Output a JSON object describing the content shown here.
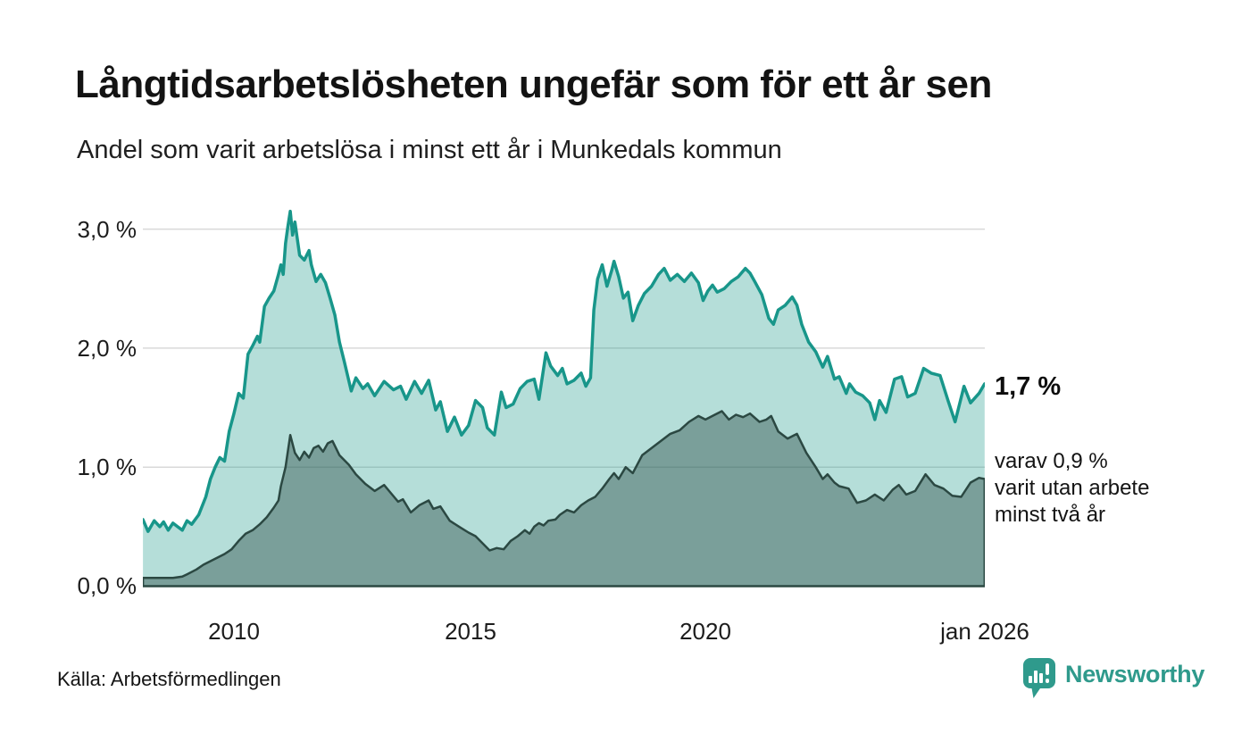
{
  "header": {
    "title": "Långtidsarbetslösheten ungefär som för ett år sen",
    "subtitle": "Andel som varit arbetslösa i minst ett år i Munkedals kommun"
  },
  "chart_data": {
    "type": "area",
    "title": "Långtidsarbetslösheten ungefär som för ett år sen",
    "subtitle": "Andel som varit arbetslösa i minst ett år i Munkedals kommun",
    "unit": "%",
    "grid": true,
    "x_range": [
      2008.06,
      2026.0
    ],
    "ylim": [
      0,
      3.25
    ],
    "y_gridlines": [
      0,
      1,
      2,
      3
    ],
    "y_ticks": [
      "3,0 %",
      "2,0 %",
      "1,0 %",
      "0,0 %"
    ],
    "x_ticks": [
      "2010",
      "2015",
      "2020",
      "jan 2026"
    ],
    "colors": {
      "grid": "#d9d9d9",
      "accent_teal": "#18968a",
      "accent_dark": "#2b4842",
      "brand": "#2f9a8c"
    },
    "series": [
      {
        "name": "arbetslösa minst ett år",
        "latest_label": "1,7 %",
        "latest_value": 1.7,
        "stroke": "#18968a",
        "stroke_width": 3.5,
        "fill": "rgba(25,152,138,0.32)",
        "points": [
          [
            2008.06,
            0.56
          ],
          [
            2008.17,
            0.46
          ],
          [
            2008.3,
            0.55
          ],
          [
            2008.42,
            0.5
          ],
          [
            2008.5,
            0.54
          ],
          [
            2008.6,
            0.47
          ],
          [
            2008.7,
            0.53
          ],
          [
            2008.8,
            0.5
          ],
          [
            2008.9,
            0.47
          ],
          [
            2009.0,
            0.55
          ],
          [
            2009.1,
            0.52
          ],
          [
            2009.25,
            0.6
          ],
          [
            2009.4,
            0.75
          ],
          [
            2009.5,
            0.9
          ],
          [
            2009.6,
            1.0
          ],
          [
            2009.7,
            1.08
          ],
          [
            2009.8,
            1.05
          ],
          [
            2009.9,
            1.3
          ],
          [
            2010.0,
            1.45
          ],
          [
            2010.1,
            1.62
          ],
          [
            2010.2,
            1.58
          ],
          [
            2010.3,
            1.95
          ],
          [
            2010.4,
            2.02
          ],
          [
            2010.5,
            2.1
          ],
          [
            2010.55,
            2.05
          ],
          [
            2010.65,
            2.35
          ],
          [
            2010.75,
            2.42
          ],
          [
            2010.85,
            2.48
          ],
          [
            2010.95,
            2.62
          ],
          [
            2011.0,
            2.7
          ],
          [
            2011.05,
            2.62
          ],
          [
            2011.1,
            2.88
          ],
          [
            2011.15,
            3.02
          ],
          [
            2011.2,
            3.15
          ],
          [
            2011.25,
            2.95
          ],
          [
            2011.3,
            3.06
          ],
          [
            2011.4,
            2.78
          ],
          [
            2011.5,
            2.74
          ],
          [
            2011.6,
            2.82
          ],
          [
            2011.65,
            2.7
          ],
          [
            2011.75,
            2.56
          ],
          [
            2011.85,
            2.62
          ],
          [
            2011.95,
            2.55
          ],
          [
            2012.05,
            2.42
          ],
          [
            2012.15,
            2.28
          ],
          [
            2012.25,
            2.05
          ],
          [
            2012.35,
            1.89
          ],
          [
            2012.5,
            1.64
          ],
          [
            2012.6,
            1.75
          ],
          [
            2012.75,
            1.66
          ],
          [
            2012.85,
            1.7
          ],
          [
            2013.0,
            1.6
          ],
          [
            2013.2,
            1.72
          ],
          [
            2013.4,
            1.65
          ],
          [
            2013.55,
            1.68
          ],
          [
            2013.67,
            1.57
          ],
          [
            2013.85,
            1.72
          ],
          [
            2014.0,
            1.62
          ],
          [
            2014.15,
            1.73
          ],
          [
            2014.3,
            1.48
          ],
          [
            2014.4,
            1.55
          ],
          [
            2014.55,
            1.3
          ],
          [
            2014.7,
            1.42
          ],
          [
            2014.85,
            1.27
          ],
          [
            2015.0,
            1.35
          ],
          [
            2015.15,
            1.56
          ],
          [
            2015.3,
            1.5
          ],
          [
            2015.4,
            1.33
          ],
          [
            2015.55,
            1.27
          ],
          [
            2015.7,
            1.63
          ],
          [
            2015.8,
            1.5
          ],
          [
            2015.95,
            1.53
          ],
          [
            2016.1,
            1.66
          ],
          [
            2016.25,
            1.72
          ],
          [
            2016.4,
            1.74
          ],
          [
            2016.5,
            1.57
          ],
          [
            2016.65,
            1.96
          ],
          [
            2016.75,
            1.85
          ],
          [
            2016.9,
            1.77
          ],
          [
            2017.0,
            1.83
          ],
          [
            2017.1,
            1.7
          ],
          [
            2017.25,
            1.73
          ],
          [
            2017.4,
            1.79
          ],
          [
            2017.5,
            1.68
          ],
          [
            2017.6,
            1.75
          ],
          [
            2017.67,
            2.32
          ],
          [
            2017.75,
            2.58
          ],
          [
            2017.85,
            2.7
          ],
          [
            2017.95,
            2.52
          ],
          [
            2018.05,
            2.65
          ],
          [
            2018.1,
            2.73
          ],
          [
            2018.2,
            2.6
          ],
          [
            2018.3,
            2.42
          ],
          [
            2018.4,
            2.47
          ],
          [
            2018.5,
            2.23
          ],
          [
            2018.62,
            2.36
          ],
          [
            2018.75,
            2.46
          ],
          [
            2018.9,
            2.52
          ],
          [
            2019.05,
            2.62
          ],
          [
            2019.17,
            2.67
          ],
          [
            2019.3,
            2.57
          ],
          [
            2019.45,
            2.62
          ],
          [
            2019.6,
            2.56
          ],
          [
            2019.75,
            2.63
          ],
          [
            2019.9,
            2.55
          ],
          [
            2020.0,
            2.4
          ],
          [
            2020.1,
            2.48
          ],
          [
            2020.2,
            2.53
          ],
          [
            2020.3,
            2.47
          ],
          [
            2020.45,
            2.5
          ],
          [
            2020.6,
            2.56
          ],
          [
            2020.75,
            2.6
          ],
          [
            2020.9,
            2.67
          ],
          [
            2021.0,
            2.63
          ],
          [
            2021.1,
            2.56
          ],
          [
            2021.25,
            2.45
          ],
          [
            2021.4,
            2.25
          ],
          [
            2021.5,
            2.2
          ],
          [
            2021.6,
            2.32
          ],
          [
            2021.75,
            2.36
          ],
          [
            2021.9,
            2.43
          ],
          [
            2022.0,
            2.36
          ],
          [
            2022.1,
            2.2
          ],
          [
            2022.25,
            2.05
          ],
          [
            2022.4,
            1.97
          ],
          [
            2022.55,
            1.84
          ],
          [
            2022.65,
            1.93
          ],
          [
            2022.8,
            1.74
          ],
          [
            2022.9,
            1.76
          ],
          [
            2023.05,
            1.62
          ],
          [
            2023.12,
            1.7
          ],
          [
            2023.25,
            1.63
          ],
          [
            2023.4,
            1.6
          ],
          [
            2023.55,
            1.54
          ],
          [
            2023.66,
            1.4
          ],
          [
            2023.76,
            1.56
          ],
          [
            2023.9,
            1.46
          ],
          [
            2024.08,
            1.74
          ],
          [
            2024.23,
            1.76
          ],
          [
            2024.36,
            1.59
          ],
          [
            2024.52,
            1.62
          ],
          [
            2024.7,
            1.83
          ],
          [
            2024.86,
            1.79
          ],
          [
            2025.05,
            1.77
          ],
          [
            2025.22,
            1.56
          ],
          [
            2025.37,
            1.38
          ],
          [
            2025.56,
            1.68
          ],
          [
            2025.7,
            1.54
          ],
          [
            2025.88,
            1.62
          ],
          [
            2026.0,
            1.7
          ]
        ]
      },
      {
        "name": "varav arbetslösa minst två år",
        "latest_label": "0,9 %",
        "latest_value": 0.9,
        "stroke": "#2b4842",
        "stroke_width": 2.5,
        "fill": "rgba(40,72,66,0.42)",
        "points": [
          [
            2008.06,
            0.07
          ],
          [
            2008.4,
            0.07
          ],
          [
            2008.7,
            0.07
          ],
          [
            2008.9,
            0.08
          ],
          [
            2009.0,
            0.1
          ],
          [
            2009.2,
            0.14
          ],
          [
            2009.35,
            0.18
          ],
          [
            2009.5,
            0.21
          ],
          [
            2009.65,
            0.24
          ],
          [
            2009.8,
            0.27
          ],
          [
            2009.95,
            0.31
          ],
          [
            2010.1,
            0.38
          ],
          [
            2010.25,
            0.44
          ],
          [
            2010.4,
            0.47
          ],
          [
            2010.55,
            0.52
          ],
          [
            2010.7,
            0.58
          ],
          [
            2010.85,
            0.66
          ],
          [
            2010.95,
            0.72
          ],
          [
            2011.0,
            0.84
          ],
          [
            2011.1,
            1.0
          ],
          [
            2011.2,
            1.27
          ],
          [
            2011.3,
            1.12
          ],
          [
            2011.4,
            1.06
          ],
          [
            2011.5,
            1.13
          ],
          [
            2011.6,
            1.08
          ],
          [
            2011.7,
            1.16
          ],
          [
            2011.8,
            1.18
          ],
          [
            2011.9,
            1.13
          ],
          [
            2012.0,
            1.2
          ],
          [
            2012.1,
            1.22
          ],
          [
            2012.25,
            1.1
          ],
          [
            2012.45,
            1.02
          ],
          [
            2012.6,
            0.94
          ],
          [
            2012.8,
            0.86
          ],
          [
            2013.0,
            0.8
          ],
          [
            2013.2,
            0.85
          ],
          [
            2013.35,
            0.78
          ],
          [
            2013.5,
            0.71
          ],
          [
            2013.6,
            0.73
          ],
          [
            2013.77,
            0.62
          ],
          [
            2013.95,
            0.68
          ],
          [
            2014.15,
            0.72
          ],
          [
            2014.25,
            0.65
          ],
          [
            2014.4,
            0.67
          ],
          [
            2014.6,
            0.55
          ],
          [
            2014.8,
            0.5
          ],
          [
            2015.0,
            0.45
          ],
          [
            2015.15,
            0.42
          ],
          [
            2015.3,
            0.36
          ],
          [
            2015.45,
            0.3
          ],
          [
            2015.6,
            0.32
          ],
          [
            2015.75,
            0.31
          ],
          [
            2015.9,
            0.38
          ],
          [
            2016.05,
            0.42
          ],
          [
            2016.2,
            0.47
          ],
          [
            2016.3,
            0.44
          ],
          [
            2016.4,
            0.5
          ],
          [
            2016.5,
            0.53
          ],
          [
            2016.6,
            0.51
          ],
          [
            2016.7,
            0.55
          ],
          [
            2016.85,
            0.56
          ],
          [
            2016.95,
            0.6
          ],
          [
            2017.1,
            0.64
          ],
          [
            2017.25,
            0.62
          ],
          [
            2017.4,
            0.68
          ],
          [
            2017.55,
            0.72
          ],
          [
            2017.7,
            0.75
          ],
          [
            2017.85,
            0.82
          ],
          [
            2018.0,
            0.9
          ],
          [
            2018.1,
            0.95
          ],
          [
            2018.2,
            0.9
          ],
          [
            2018.35,
            1.0
          ],
          [
            2018.5,
            0.95
          ],
          [
            2018.7,
            1.1
          ],
          [
            2018.9,
            1.16
          ],
          [
            2019.1,
            1.22
          ],
          [
            2019.3,
            1.28
          ],
          [
            2019.5,
            1.31
          ],
          [
            2019.7,
            1.38
          ],
          [
            2019.9,
            1.43
          ],
          [
            2020.05,
            1.4
          ],
          [
            2020.25,
            1.44
          ],
          [
            2020.4,
            1.47
          ],
          [
            2020.55,
            1.4
          ],
          [
            2020.7,
            1.44
          ],
          [
            2020.85,
            1.42
          ],
          [
            2021.0,
            1.45
          ],
          [
            2021.2,
            1.38
          ],
          [
            2021.35,
            1.4
          ],
          [
            2021.45,
            1.43
          ],
          [
            2021.6,
            1.3
          ],
          [
            2021.8,
            1.24
          ],
          [
            2022.0,
            1.28
          ],
          [
            2022.2,
            1.12
          ],
          [
            2022.4,
            1.0
          ],
          [
            2022.55,
            0.9
          ],
          [
            2022.65,
            0.94
          ],
          [
            2022.8,
            0.87
          ],
          [
            2022.9,
            0.84
          ],
          [
            2023.1,
            0.82
          ],
          [
            2023.28,
            0.7
          ],
          [
            2023.47,
            0.72
          ],
          [
            2023.66,
            0.77
          ],
          [
            2023.85,
            0.72
          ],
          [
            2024.04,
            0.81
          ],
          [
            2024.17,
            0.85
          ],
          [
            2024.33,
            0.77
          ],
          [
            2024.52,
            0.8
          ],
          [
            2024.74,
            0.94
          ],
          [
            2024.93,
            0.85
          ],
          [
            2025.12,
            0.82
          ],
          [
            2025.31,
            0.76
          ],
          [
            2025.5,
            0.75
          ],
          [
            2025.7,
            0.87
          ],
          [
            2025.88,
            0.91
          ],
          [
            2026.0,
            0.9
          ]
        ]
      }
    ]
  },
  "annotations": {
    "latest_total": "1,7 %",
    "sub_line1": "varav 0,9 %",
    "sub_line2": "varit utan arbete",
    "sub_line3": "minst två år"
  },
  "footer": {
    "source": "Källa: Arbetsförmedlingen",
    "brand": "Newsworthy"
  }
}
